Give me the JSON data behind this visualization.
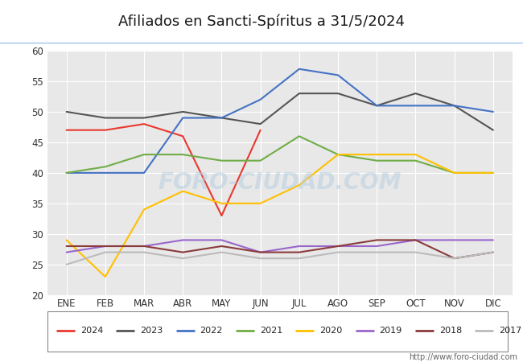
{
  "title": "Afiliados en Sancti-Spíritus a 31/5/2024",
  "months": [
    "ENE",
    "FEB",
    "MAR",
    "ABR",
    "MAY",
    "JUN",
    "JUL",
    "AGO",
    "SEP",
    "OCT",
    "NOV",
    "DIC"
  ],
  "ylim": [
    20,
    60
  ],
  "yticks": [
    20,
    25,
    30,
    35,
    40,
    45,
    50,
    55,
    60
  ],
  "series": {
    "2024": {
      "color": "#e8392e",
      "data": [
        47,
        47,
        48,
        46,
        33,
        47,
        null,
        null,
        null,
        null,
        null,
        null
      ]
    },
    "2023": {
      "color": "#555555",
      "data": [
        50,
        49,
        49,
        50,
        49,
        48,
        53,
        53,
        51,
        53,
        51,
        47
      ]
    },
    "2022": {
      "color": "#4472c4",
      "data": [
        40,
        40,
        40,
        49,
        49,
        52,
        57,
        56,
        51,
        51,
        51,
        50
      ]
    },
    "2021": {
      "color": "#70ad47",
      "data": [
        40,
        41,
        43,
        43,
        42,
        42,
        46,
        43,
        42,
        42,
        40,
        40
      ]
    },
    "2020": {
      "color": "#ffc000",
      "data": [
        29,
        23,
        34,
        37,
        35,
        35,
        38,
        43,
        43,
        43,
        40,
        40
      ]
    },
    "2019": {
      "color": "#9966cc",
      "data": [
        27,
        28,
        28,
        29,
        29,
        27,
        28,
        28,
        28,
        29,
        29,
        29
      ]
    },
    "2018": {
      "color": "#8b3a3a",
      "data": [
        28,
        28,
        28,
        27,
        28,
        27,
        27,
        28,
        29,
        29,
        26,
        27
      ]
    },
    "2017": {
      "color": "#bbbbbb",
      "data": [
        25,
        27,
        27,
        26,
        27,
        26,
        26,
        27,
        27,
        27,
        26,
        27
      ]
    }
  },
  "legend_order": [
    "2024",
    "2023",
    "2022",
    "2021",
    "2020",
    "2019",
    "2018",
    "2017"
  ],
  "url_text": "http://www.foro-ciudad.com",
  "bg_plot": "#e8e8e8",
  "grid_color": "#ffffff",
  "header_color": "#6aaed6",
  "title_fontsize": 13
}
